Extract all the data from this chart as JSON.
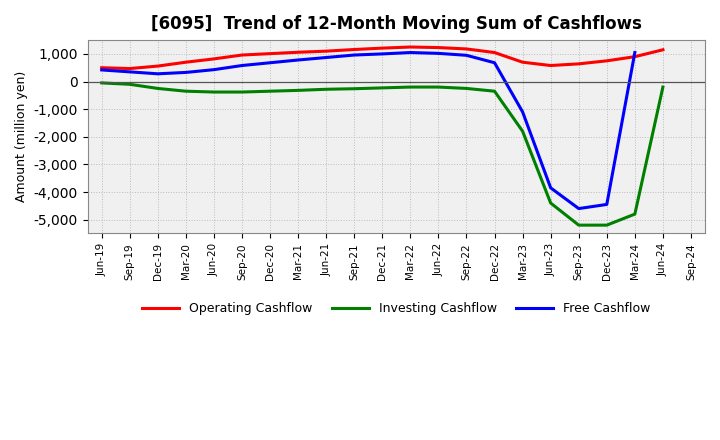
{
  "title": "[6095]  Trend of 12-Month Moving Sum of Cashflows",
  "ylabel": "Amount (million yen)",
  "ylim": [
    -5500,
    1500
  ],
  "yticks": [
    -5000,
    -4000,
    -3000,
    -2000,
    -1000,
    0,
    1000
  ],
  "x_labels": [
    "Jun-19",
    "Sep-19",
    "Dec-19",
    "Mar-20",
    "Jun-20",
    "Sep-20",
    "Dec-20",
    "Mar-21",
    "Jun-21",
    "Sep-21",
    "Dec-21",
    "Mar-22",
    "Jun-22",
    "Sep-22",
    "Dec-22",
    "Mar-23",
    "Jun-23",
    "Sep-23",
    "Dec-23",
    "Mar-24",
    "Jun-24",
    "Sep-24"
  ],
  "operating_cashflow": [
    500,
    470,
    560,
    700,
    820,
    960,
    1010,
    1060,
    1100,
    1160,
    1210,
    1250,
    1230,
    1180,
    1050,
    700,
    580,
    640,
    750,
    900,
    1150,
    null
  ],
  "investing_cashflow": [
    -50,
    -100,
    -250,
    -350,
    -380,
    -380,
    -350,
    -320,
    -280,
    -260,
    -230,
    -200,
    -200,
    -250,
    -350,
    -1800,
    -4400,
    -5200,
    -5200,
    -4800,
    -200,
    null
  ],
  "free_cashflow": [
    420,
    350,
    280,
    330,
    430,
    580,
    680,
    780,
    870,
    960,
    1000,
    1050,
    1020,
    950,
    680,
    -1100,
    -3850,
    -4600,
    -4450,
    1050,
    null,
    null
  ],
  "operating_color": "#ff0000",
  "investing_color": "#008000",
  "free_color": "#0000ff",
  "background_color": "#ffffff",
  "plot_bg_color": "#f0f0f0",
  "grid_color": "#bbbbbb",
  "legend_labels": [
    "Operating Cashflow",
    "Investing Cashflow",
    "Free Cashflow"
  ]
}
